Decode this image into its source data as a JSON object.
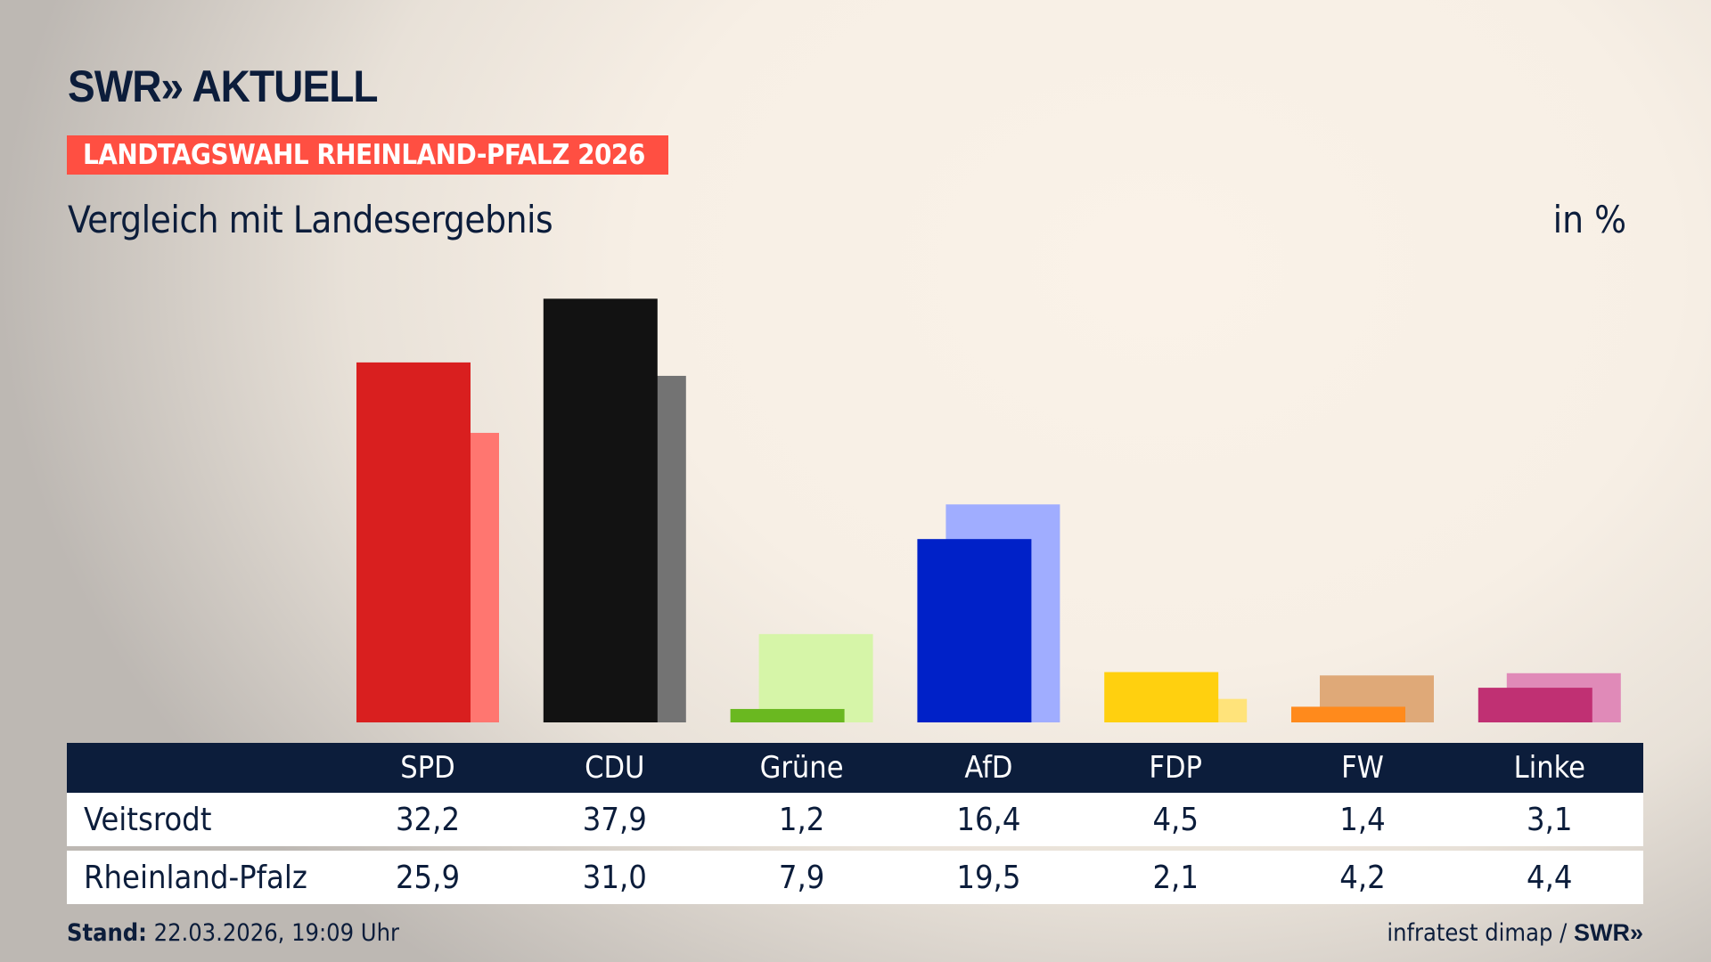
{
  "logo": "SWR» AKTUELL",
  "badge": "LANDTAGSWAHL RHEINLAND-PFALZ 2026",
  "subtitle": "Vergleich mit Landesergebnis",
  "unit": "in %",
  "footer": {
    "stand_label": "Stand:",
    "stand_value": " 22.03.2026, 19:09 Uhr",
    "source": "infratest dimap / ",
    "source_logo": "SWR»"
  },
  "chart_data": {
    "type": "bar",
    "categories": [
      "SPD",
      "CDU",
      "Grüne",
      "AfD",
      "FDP",
      "FW",
      "Linke"
    ],
    "series": [
      {
        "name": "Veitsrodt",
        "values": [
          32.2,
          37.9,
          1.2,
          16.4,
          4.5,
          1.4,
          3.1
        ],
        "colors": [
          "#d91f1f",
          "#121212",
          "#6ab820",
          "#0021c8",
          "#ffd00f",
          "#ff8a1c",
          "#c03073"
        ]
      },
      {
        "name": "Rheinland-Pfalz",
        "values": [
          25.9,
          31.0,
          7.9,
          19.5,
          2.1,
          4.2,
          4.4
        ],
        "colors": [
          "#ff7670",
          "#737373",
          "#d6f5a8",
          "#a0adff",
          "#ffe37a",
          "#dfa978",
          "#e08ab8"
        ]
      }
    ],
    "display": [
      "32,2",
      "37,9",
      "1,2",
      "16,4",
      "4,5",
      "1,4",
      "3,1"
    ],
    "display2": [
      "25,9",
      "31,0",
      "7,9",
      "19,5",
      "2,1",
      "4,2",
      "4,4"
    ],
    "ylim": [
      0,
      40
    ],
    "grid": false
  }
}
